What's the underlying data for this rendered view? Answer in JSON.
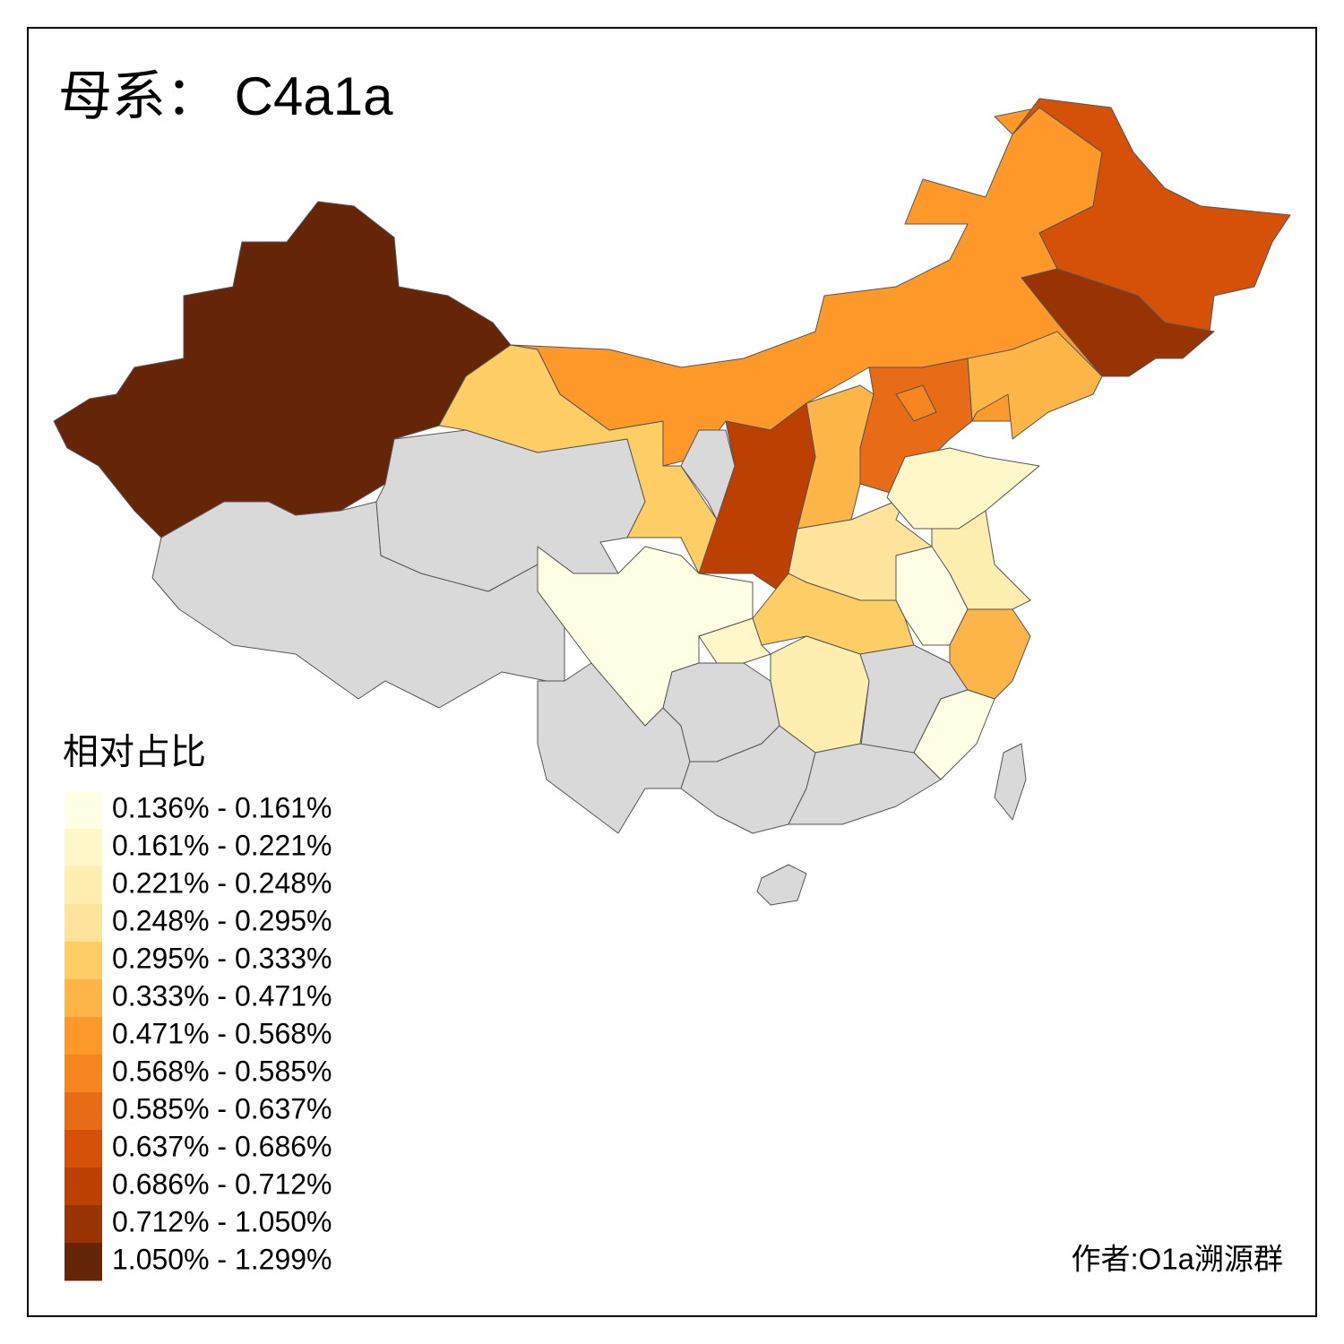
{
  "title": "母系： C4a1a",
  "legend": {
    "title": "相对占比",
    "items": [
      {
        "label": "0.136% - 0.161%",
        "color": "#ffffe5"
      },
      {
        "label": "0.161% - 0.221%",
        "color": "#fff7c8"
      },
      {
        "label": "0.221% - 0.248%",
        "color": "#feeeb0"
      },
      {
        "label": "0.248% - 0.295%",
        "color": "#fee39a"
      },
      {
        "label": "0.295% - 0.333%",
        "color": "#fece65"
      },
      {
        "label": "0.333% - 0.471%",
        "color": "#feb548"
      },
      {
        "label": "0.471% - 0.568%",
        "color": "#fe9929"
      },
      {
        "label": "0.568% - 0.585%",
        "color": "#f6841f"
      },
      {
        "label": "0.585% - 0.637%",
        "color": "#e86b15"
      },
      {
        "label": "0.637% - 0.686%",
        "color": "#d55108"
      },
      {
        "label": "0.686% - 0.712%",
        "color": "#bd4003"
      },
      {
        "label": "0.712% - 1.050%",
        "color": "#983304"
      },
      {
        "label": "1.050% - 1.299%",
        "color": "#662506"
      }
    ]
  },
  "credit": "作者:O1a溯源群"
}
